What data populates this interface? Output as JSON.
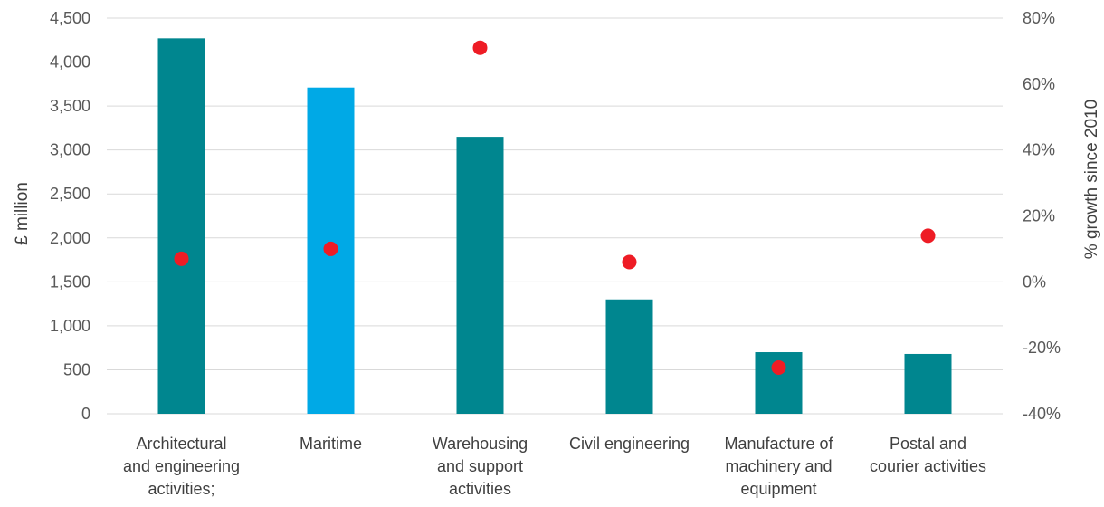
{
  "chart_data": {
    "type": "bar",
    "title": "",
    "xlabel": "",
    "ylabel": "£ million",
    "y2label": "% growth since 2010",
    "ylim": [
      0,
      4500
    ],
    "y_ticks": [
      "0",
      "500",
      "1,000",
      "1,500",
      "2,000",
      "2,500",
      "3,000",
      "3,500",
      "4,000",
      "4,500"
    ],
    "y2lim": [
      -40,
      80
    ],
    "y2_ticks": [
      "-40%",
      "-20%",
      "0%",
      "20%",
      "40%",
      "60%",
      "80%"
    ],
    "grid": true,
    "categories": [
      [
        "Architectural",
        "and engineering",
        "activities;"
      ],
      [
        "Maritime"
      ],
      [
        "Warehousing",
        "and support",
        "activities"
      ],
      [
        "Civil engineering"
      ],
      [
        "Manufacture of",
        "machinery and",
        "equipment"
      ],
      [
        "Postal and",
        "courier activities"
      ]
    ],
    "series": [
      {
        "type": "bar",
        "axis": "left",
        "values": [
          4270,
          3710,
          3150,
          1300,
          700,
          680
        ],
        "colors": [
          "#00868F",
          "#00A9E6",
          "#00868F",
          "#00868F",
          "#00868F",
          "#00868F"
        ]
      },
      {
        "type": "scatter",
        "axis": "right",
        "values": [
          7,
          10,
          71,
          6,
          -26,
          14
        ],
        "color": "#EE1C25"
      }
    ]
  }
}
